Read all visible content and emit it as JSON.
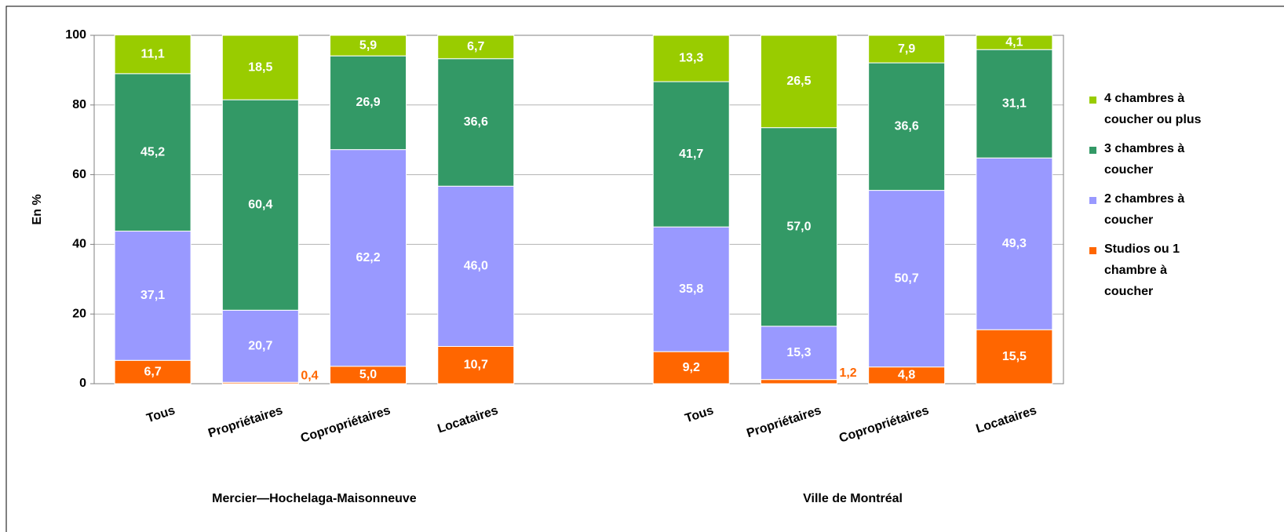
{
  "chart_data": {
    "type": "stacked_bar",
    "y_label": "En %",
    "categories": [
      "Tous",
      "Propriétaires",
      "Copropriétaires",
      "Locataires",
      null,
      "Tous",
      "Propriétaires",
      "Copropriétaires",
      "Locataires"
    ],
    "group_labels": [
      "Mercier—Hochelaga-Maisonneuve",
      "Ville de Montréal"
    ],
    "series": [
      {
        "name": "Studios ou 1 chambre à coucher",
        "color": "#ff6600",
        "values": [
          6.7,
          0.4,
          5.0,
          10.7,
          null,
          9.2,
          1.2,
          4.8,
          15.5
        ],
        "value_labels": [
          "6,7",
          "0,4",
          "5,0",
          "10,7",
          null,
          "9,2",
          "1,2",
          "4,8",
          "15,5"
        ]
      },
      {
        "name": "2 chambres à coucher",
        "color": "#9999ff",
        "values": [
          37.1,
          20.7,
          62.2,
          46.0,
          null,
          35.8,
          15.3,
          50.7,
          49.3
        ],
        "value_labels": [
          "37,1",
          "20,7",
          "62,2",
          "46,0",
          null,
          "35,8",
          "15,3",
          "50,7",
          "49,3"
        ]
      },
      {
        "name": "3 chambres à coucher",
        "color": "#339966",
        "values": [
          45.2,
          60.4,
          26.9,
          36.6,
          null,
          41.7,
          57.0,
          36.6,
          31.1
        ],
        "value_labels": [
          "45,2",
          "60,4",
          "26,9",
          "36,6",
          null,
          "41,7",
          "57,0",
          "36,6",
          "31,1"
        ]
      },
      {
        "name": "4 chambres à coucher ou plus",
        "color": "#99cc00",
        "values": [
          11.1,
          18.5,
          5.9,
          6.7,
          null,
          13.3,
          26.5,
          7.9,
          4.1
        ],
        "value_labels": [
          "11,1",
          "18,5",
          "5,9",
          "6,7",
          null,
          "13,3",
          "26,5",
          "7,9",
          "4,1"
        ]
      }
    ],
    "ylim": [
      0,
      100
    ],
    "yticks": [
      0,
      20,
      40,
      60,
      80,
      100
    ],
    "grid": true,
    "legend": "right"
  }
}
